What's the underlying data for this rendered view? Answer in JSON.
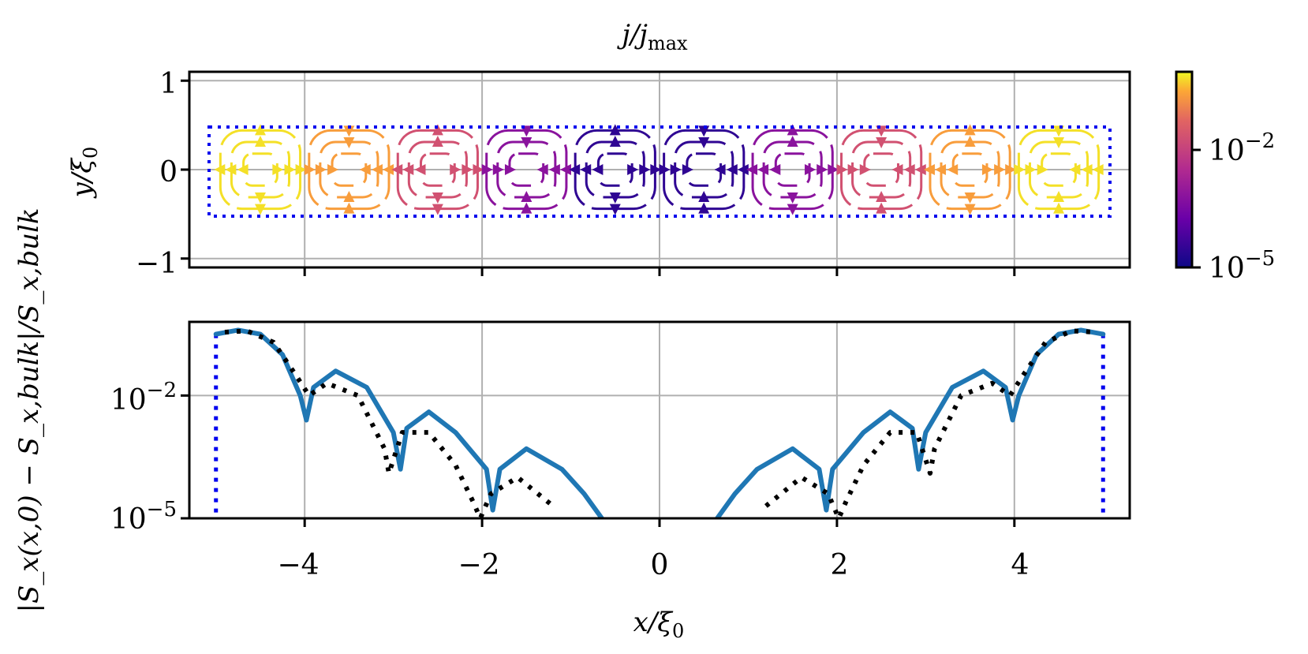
{
  "chart_data": [
    {
      "type": "streamplot",
      "title": "j/j_max",
      "title_parts": {
        "main": "j/j",
        "sub": "max"
      },
      "xlabel": "",
      "ylabel": "y/ξ0",
      "ylabel_parts": {
        "main": "y/ξ",
        "sub": "0"
      },
      "xlim": [
        -5.3,
        5.3
      ],
      "ylim": [
        -1.1,
        1.1
      ],
      "yticks": [
        "1",
        "0",
        "−1"
      ],
      "yticks_values": [
        1,
        0,
        -1
      ],
      "xticks_values": [
        -4,
        -2,
        0,
        2,
        4
      ],
      "grid": true,
      "colormap": "plasma",
      "colorbar": {
        "scale": "log",
        "ticks": [
          {
            "base": "10",
            "exp": "−2"
          },
          {
            "base": "10",
            "exp": "−5"
          }
        ],
        "ticks_values": [
          -2,
          -5
        ]
      },
      "region": {
        "x": [
          -5,
          5
        ],
        "y": [
          -0.5,
          0.5
        ],
        "style": "dotted",
        "color": "#0000ee"
      },
      "vortex_cells": [
        {
          "x": [
            -5.0,
            -4.0
          ],
          "log10_magnitude": -1.8
        },
        {
          "x": [
            -4.0,
            -3.0
          ],
          "log10_magnitude": -2.1
        },
        {
          "x": [
            -3.0,
            -2.0
          ],
          "log10_magnitude": -2.8
        },
        {
          "x": [
            -2.0,
            -1.0
          ],
          "log10_magnitude": -3.8
        },
        {
          "x": [
            -1.0,
            0.0
          ],
          "log10_magnitude": -4.7
        },
        {
          "x": [
            0.0,
            1.0
          ],
          "log10_magnitude": -4.7
        },
        {
          "x": [
            1.0,
            2.0
          ],
          "log10_magnitude": -3.8
        },
        {
          "x": [
            2.0,
            3.0
          ],
          "log10_magnitude": -2.8
        },
        {
          "x": [
            3.0,
            4.0
          ],
          "log10_magnitude": -2.1
        },
        {
          "x": [
            4.0,
            5.0
          ],
          "log10_magnitude": -1.8
        }
      ]
    },
    {
      "type": "line",
      "xlabel": "x/ξ0",
      "xlabel_parts": {
        "main": "x/ξ",
        "sub": "0"
      },
      "ylabel": "|S_x(x,0) − S_x,bulk|/S_x,bulk",
      "xlim": [
        -5.3,
        5.3
      ],
      "yscale": "log",
      "ylim_log10": [
        -5,
        -0.2
      ],
      "xticks": [
        "−4",
        "−2",
        "0",
        "2",
        "4"
      ],
      "xticks_values": [
        -4,
        -2,
        0,
        2,
        4
      ],
      "yticks": [
        {
          "base": "10",
          "exp": "−2"
        },
        {
          "base": "10",
          "exp": "−5"
        }
      ],
      "yticks_values": [
        -2,
        -5
      ],
      "grid": true,
      "boundary_lines": {
        "x": [
          -5,
          5
        ],
        "style": "dotted",
        "color": "#0000ee"
      },
      "series": [
        {
          "style": "solid",
          "color": "#1f77b4",
          "x": [
            -5.0,
            -4.75,
            -4.5,
            -4.25,
            -4.05,
            -3.98,
            -3.9,
            -3.65,
            -3.3,
            -3.0,
            -2.92,
            -2.85,
            -2.6,
            -2.3,
            -1.95,
            -1.88,
            -1.8,
            -1.5,
            -1.1,
            -0.85,
            -0.65
          ],
          "log10y": [
            -0.5,
            -0.4,
            -0.5,
            -1.0,
            -2.0,
            -2.6,
            -1.8,
            -1.4,
            -1.8,
            -2.9,
            -3.8,
            -2.8,
            -2.4,
            -2.9,
            -3.8,
            -4.8,
            -3.8,
            -3.3,
            -3.8,
            -4.4,
            -5.0
          ]
        },
        {
          "style": "solid",
          "color": "#1f77b4",
          "x": [
            0.65,
            0.85,
            1.1,
            1.5,
            1.8,
            1.88,
            1.95,
            2.3,
            2.6,
            2.85,
            2.92,
            3.0,
            3.3,
            3.65,
            3.9,
            3.98,
            4.05,
            4.25,
            4.5,
            4.75,
            5.0
          ],
          "log10y": [
            -5.0,
            -4.4,
            -3.8,
            -3.3,
            -3.8,
            -4.8,
            -3.8,
            -2.9,
            -2.4,
            -2.8,
            -3.8,
            -2.9,
            -1.8,
            -1.4,
            -1.8,
            -2.6,
            -2.0,
            -1.0,
            -0.5,
            -0.4,
            -0.5
          ]
        },
        {
          "style": "dotted",
          "color": "#000000",
          "x": [
            -4.9,
            -4.65,
            -4.35,
            -4.1,
            -3.95,
            -3.75,
            -3.4,
            -3.1,
            -3.05,
            -2.9,
            -2.6,
            -2.3,
            -2.1,
            -2.02,
            -1.9,
            -1.6,
            -1.2
          ],
          "log10y": [
            -0.45,
            -0.42,
            -0.7,
            -1.5,
            -2.0,
            -1.7,
            -2.0,
            -3.3,
            -3.9,
            -2.9,
            -2.9,
            -3.7,
            -4.6,
            -5.0,
            -4.4,
            -4.0,
            -4.7
          ]
        },
        {
          "style": "dotted",
          "color": "#000000",
          "x": [
            1.2,
            1.6,
            1.9,
            2.02,
            2.1,
            2.3,
            2.6,
            2.9,
            3.05,
            3.1,
            3.4,
            3.75,
            3.95,
            4.1,
            4.35,
            4.65,
            4.9
          ],
          "log10y": [
            -4.7,
            -4.0,
            -4.4,
            -5.0,
            -4.6,
            -3.7,
            -2.9,
            -2.9,
            -3.9,
            -3.3,
            -2.0,
            -1.7,
            -2.0,
            -1.5,
            -0.7,
            -0.42,
            -0.45
          ]
        }
      ]
    }
  ]
}
